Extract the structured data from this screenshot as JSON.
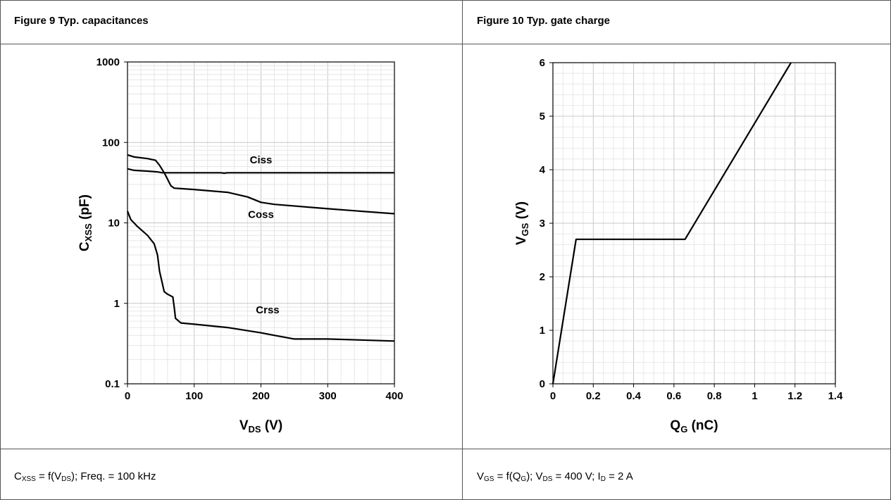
{
  "panels": {
    "left": {
      "caption": "Figure 9 Typ. capacitances",
      "condition": {
        "parts": [
          {
            "text": "C"
          },
          {
            "sub": "XSS"
          },
          {
            "text": " = f(V"
          },
          {
            "sub": "DS"
          },
          {
            "text": "); Freq. = 100 kHz"
          }
        ]
      }
    },
    "right": {
      "caption": "Figure 10 Typ. gate charge",
      "condition": {
        "parts": [
          {
            "text": "V"
          },
          {
            "sub": "GS"
          },
          {
            "text": " = f(Q"
          },
          {
            "sub": "G"
          },
          {
            "text": "); V"
          },
          {
            "sub": "DS"
          },
          {
            "text": " = 400 V; I"
          },
          {
            "sub": "D"
          },
          {
            "text": " = 2 A"
          }
        ]
      }
    }
  },
  "chart_data": [
    {
      "type": "line",
      "y_scale": "log",
      "xlim": [
        0,
        400
      ],
      "ylim": [
        0.1,
        1000
      ],
      "grid": true,
      "x_ticks": [
        "0",
        "100",
        "200",
        "300",
        "400"
      ],
      "y_ticks": [
        "0.1",
        "1",
        "10",
        "100",
        "1000"
      ],
      "xlabel": {
        "main": "V",
        "sub": "DS",
        "rest": " (V)"
      },
      "ylabel": {
        "main": "C",
        "sub": "XSS",
        "rest": " (pF)"
      },
      "series": [
        {
          "name": "Ciss",
          "x": [
            0,
            10,
            30,
            45,
            52,
            60,
            100,
            140,
            145,
            150,
            200,
            300,
            400
          ],
          "y": [
            47,
            45,
            44,
            43,
            42,
            42,
            42,
            42,
            41.5,
            42,
            42,
            42,
            42
          ]
        },
        {
          "name": "Coss",
          "x": [
            0,
            10,
            30,
            42,
            48,
            55,
            60,
            65,
            70,
            100,
            150,
            180,
            200,
            220,
            300,
            400
          ],
          "y": [
            70,
            66,
            63,
            60,
            52,
            42,
            35,
            29,
            27,
            26,
            24,
            21,
            18,
            17,
            15,
            13
          ]
        },
        {
          "name": "Crss",
          "x": [
            0,
            5,
            15,
            30,
            40,
            45,
            48,
            52,
            55,
            60,
            68,
            70,
            72,
            80,
            100,
            150,
            200,
            220,
            250,
            300,
            350,
            400
          ],
          "y": [
            14,
            11,
            9,
            7,
            5.5,
            4,
            2.5,
            1.8,
            1.4,
            1.3,
            1.2,
            0.9,
            0.65,
            0.57,
            0.55,
            0.5,
            0.43,
            0.4,
            0.36,
            0.36,
            0.35,
            0.34
          ]
        }
      ],
      "labels": [
        {
          "text": "Ciss",
          "x": 200,
          "y": 55
        },
        {
          "text": "Coss",
          "x": 200,
          "y": 11.5
        },
        {
          "text": "Crss",
          "x": 210,
          "y": 0.75
        }
      ]
    },
    {
      "type": "line",
      "xlim": [
        0,
        1.4
      ],
      "ylim": [
        0,
        6
      ],
      "grid": true,
      "x_ticks": [
        "0",
        "0.2",
        "0.4",
        "0.6",
        "0.8",
        "1",
        "1.2",
        "1.4"
      ],
      "y_ticks": [
        "0",
        "1",
        "2",
        "3",
        "4",
        "5",
        "6"
      ],
      "xlabel": {
        "main": "Q",
        "sub": "G",
        "rest": " (nC)"
      },
      "ylabel": {
        "main": "V",
        "sub": "GS",
        "rest": " (V)"
      },
      "series": [
        {
          "x": [
            0,
            0.115,
            0.655,
            1.18
          ],
          "y": [
            0,
            2.7,
            2.7,
            6
          ]
        }
      ]
    }
  ]
}
